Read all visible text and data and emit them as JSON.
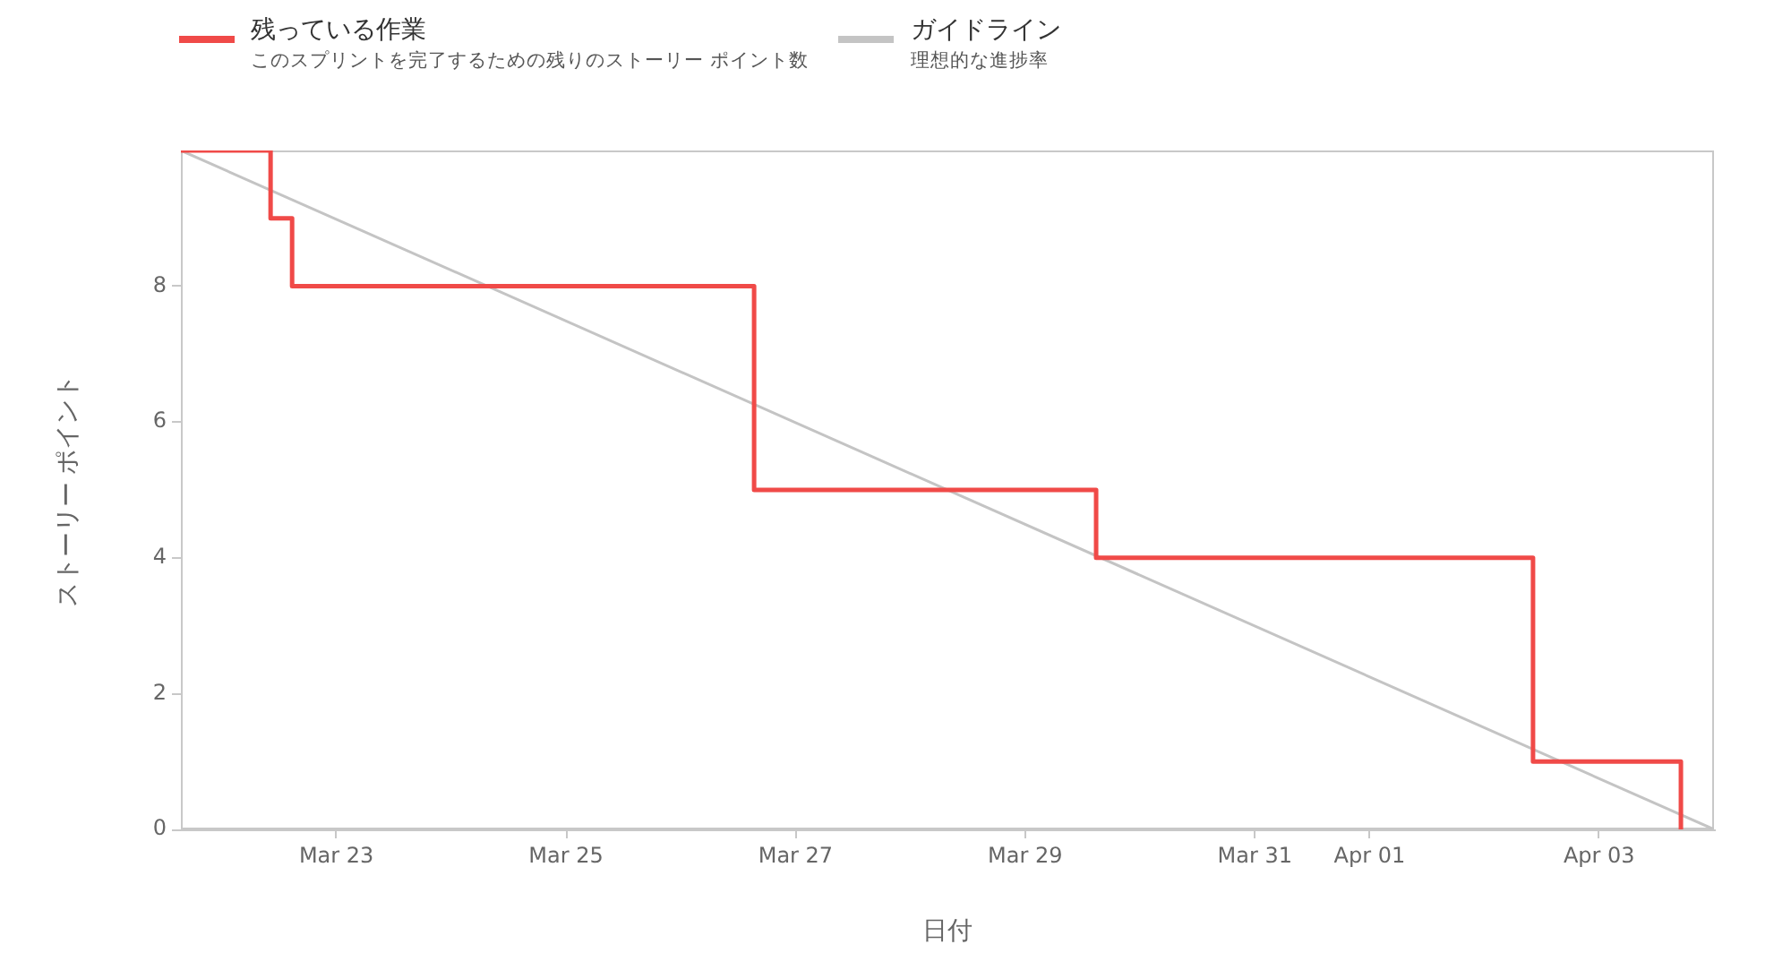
{
  "chart_data": {
    "type": "step",
    "xlabel": "日付",
    "ylabel": "ストーリー ポイント",
    "annotations": [
      "このスプリントを完了するための残りのストーリー ポイント数",
      "理想的な進捗率"
    ],
    "xlim": [
      "--03-21T15:30",
      "--04-04"
    ],
    "xticks": [
      {
        "value": "--03-23",
        "label": "Mar 23"
      },
      {
        "value": "--03-25",
        "label": "Mar 25"
      },
      {
        "value": "--03-27",
        "label": "Mar 27"
      },
      {
        "value": "--03-29",
        "label": "Mar 29"
      },
      {
        "value": "--03-31",
        "label": "Mar 31"
      },
      {
        "value": "--04-01",
        "label": "Apr 01"
      },
      {
        "value": "--04-03",
        "label": "Apr 03"
      }
    ],
    "ylim": [
      0,
      10
    ],
    "yticks": [
      0,
      2,
      4,
      6,
      8
    ],
    "series": [
      {
        "name": "残っている作業",
        "color": "#f04a48",
        "x": [
          "--03-21T15:30",
          "--03-22T10:15",
          "--03-22T14:45",
          "--03-26T15:20",
          "--03-29T14:50",
          "--04-02T10:10",
          "--04-03T17:05"
        ],
        "values": [
          10,
          9,
          8,
          5,
          4,
          1,
          0
        ]
      },
      {
        "name": "ガイドライン",
        "type": "line",
        "color": "#c4c4c4",
        "x": [
          "--03-21T15:30",
          "--04-04"
        ],
        "values": [
          10,
          0
        ]
      }
    ],
    "legend": "top left",
    "grid": false,
    "marker": "none"
  }
}
